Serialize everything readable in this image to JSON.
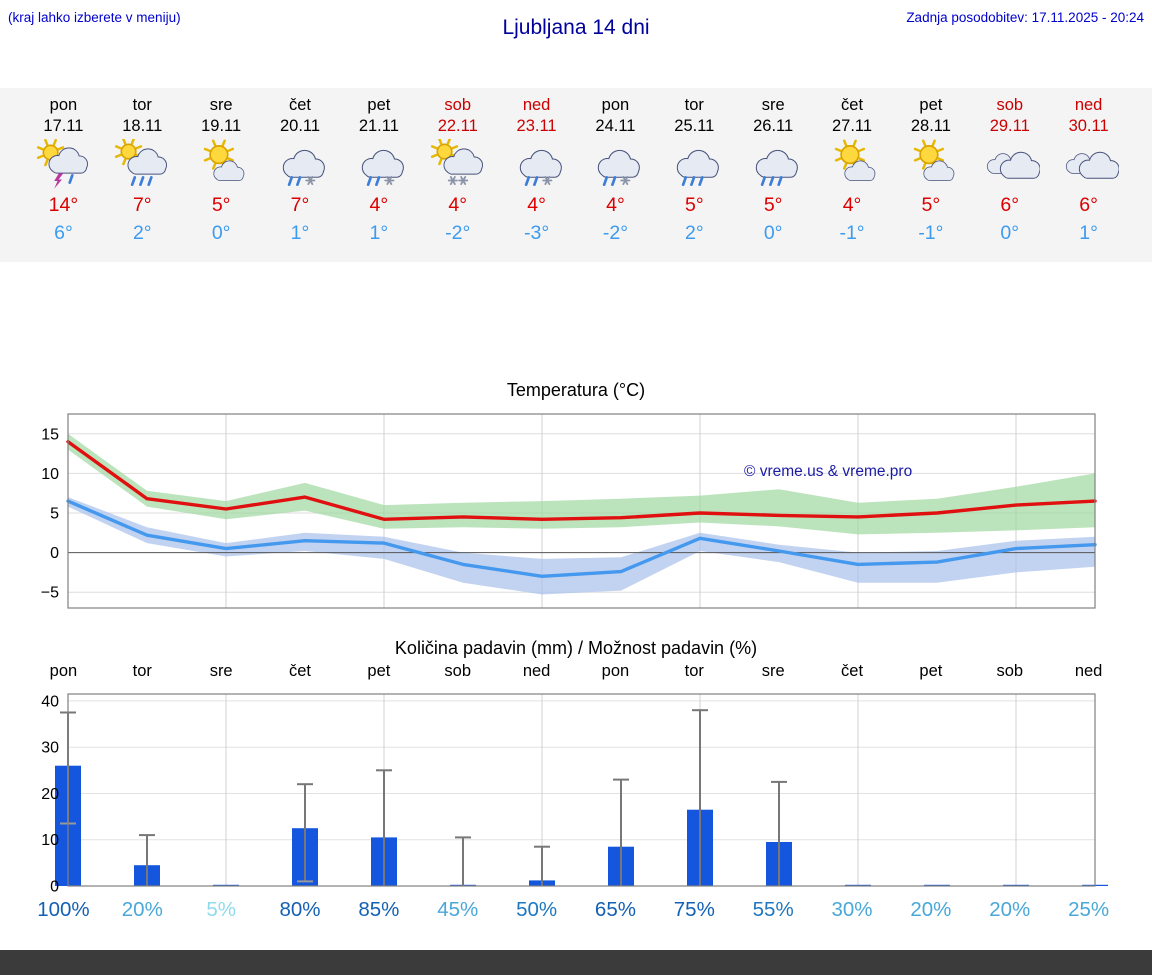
{
  "header": {
    "note": "(kraj lahko izberete v meniju)",
    "title": "Ljubljana 14 dni",
    "updated": "Zadnja posodobitev: 17.11.2025 - 20:24"
  },
  "colors": {
    "weekday": "#000000",
    "weekend": "#cc0000",
    "tmax": "#dd0000",
    "tmin": "#3b9bf0",
    "bar": "#1456dd",
    "temp_max_line": "#e01010",
    "temp_min_line": "#4499ee",
    "temp_max_band": "#9fd89f",
    "temp_min_band": "#a8c0ec",
    "watermark": "#1a1aa6",
    "footer_bar": "#3b3b3b"
  },
  "days": [
    {
      "name": "pon",
      "date": "17.11",
      "weekend": false,
      "icon": "thunderstorm-sun",
      "tmax": "14°",
      "tmin": "6°"
    },
    {
      "name": "tor",
      "date": "18.11",
      "weekend": false,
      "icon": "rain-sun",
      "tmax": "7°",
      "tmin": "2°"
    },
    {
      "name": "sre",
      "date": "19.11",
      "weekend": false,
      "icon": "partly-sunny",
      "tmax": "5°",
      "tmin": "0°"
    },
    {
      "name": "čet",
      "date": "20.11",
      "weekend": false,
      "icon": "sleet",
      "tmax": "7°",
      "tmin": "1°"
    },
    {
      "name": "pet",
      "date": "21.11",
      "weekend": false,
      "icon": "sleet",
      "tmax": "4°",
      "tmin": "1°"
    },
    {
      "name": "sob",
      "date": "22.11",
      "weekend": true,
      "icon": "snow-sun",
      "tmax": "4°",
      "tmin": "-2°"
    },
    {
      "name": "ned",
      "date": "23.11",
      "weekend": true,
      "icon": "sleet",
      "tmax": "4°",
      "tmin": "-3°"
    },
    {
      "name": "pon",
      "date": "24.11",
      "weekend": false,
      "icon": "sleet",
      "tmax": "4°",
      "tmin": "-2°"
    },
    {
      "name": "tor",
      "date": "25.11",
      "weekend": false,
      "icon": "rain",
      "tmax": "5°",
      "tmin": "2°"
    },
    {
      "name": "sre",
      "date": "26.11",
      "weekend": false,
      "icon": "rain",
      "tmax": "5°",
      "tmin": "0°"
    },
    {
      "name": "čet",
      "date": "27.11",
      "weekend": false,
      "icon": "partly-sunny",
      "tmax": "4°",
      "tmin": "-1°"
    },
    {
      "name": "pet",
      "date": "28.11",
      "weekend": false,
      "icon": "partly-sunny",
      "tmax": "5°",
      "tmin": "-1°"
    },
    {
      "name": "sob",
      "date": "29.11",
      "weekend": true,
      "icon": "cloudy",
      "tmax": "6°",
      "tmin": "0°"
    },
    {
      "name": "ned",
      "date": "30.11",
      "weekend": true,
      "icon": "cloudy",
      "tmax": "6°",
      "tmin": "1°"
    }
  ],
  "chart_data": {
    "temperature": {
      "type": "line",
      "title": "Temperatura (°C)",
      "categories": [
        "pon",
        "tor",
        "sre",
        "čet",
        "pet",
        "sob",
        "ned",
        "pon",
        "tor",
        "sre",
        "čet",
        "pet",
        "sob",
        "ned"
      ],
      "ylim": [
        -7,
        17.5
      ],
      "yticks": [
        [
          15,
          "15"
        ],
        [
          10,
          "10"
        ],
        [
          5,
          "5"
        ],
        [
          0,
          "0"
        ],
        [
          -5,
          "−5"
        ]
      ],
      "grid": true,
      "watermark": "© vreme.us & vreme.pro",
      "series": [
        {
          "name": "max",
          "values": [
            14,
            6.8,
            5.5,
            7,
            4.2,
            4.5,
            4.2,
            4.4,
            5,
            4.7,
            4.5,
            5,
            6,
            6.5
          ]
        },
        {
          "name": "min",
          "values": [
            6.5,
            2.2,
            0.5,
            1.5,
            1.2,
            -1.5,
            -3,
            -2.4,
            1.8,
            0.2,
            -1.5,
            -1.2,
            0.5,
            1
          ]
        },
        {
          "name": "max_band_upper",
          "values": [
            15,
            7.8,
            6.5,
            8.8,
            6,
            6.3,
            6.5,
            6.8,
            7.2,
            8,
            6.3,
            6.8,
            8.3,
            10
          ]
        },
        {
          "name": "max_band_lower",
          "values": [
            13,
            5.8,
            4.2,
            5.3,
            3,
            3.2,
            3,
            3.2,
            3.8,
            3.3,
            2.3,
            2.5,
            2.8,
            3.2
          ]
        },
        {
          "name": "min_band_upper",
          "values": [
            7,
            3.2,
            1.2,
            2.5,
            2,
            0,
            -0.8,
            -0.6,
            2.5,
            1,
            0,
            0.2,
            1.5,
            2
          ]
        },
        {
          "name": "min_band_lower",
          "values": [
            5.8,
            1.2,
            -0.5,
            0.2,
            -0.8,
            -3.8,
            -5.3,
            -4.8,
            0.2,
            -1.2,
            -3.8,
            -3.8,
            -2.5,
            -1.8
          ]
        }
      ]
    },
    "precipitation": {
      "type": "bar",
      "title": "Količina padavin (mm) / Možnost padavin (%)",
      "categories": [
        "pon",
        "tor",
        "sre",
        "čet",
        "pet",
        "sob",
        "ned",
        "pon",
        "tor",
        "sre",
        "čet",
        "pet",
        "sob",
        "ned"
      ],
      "ylim": [
        0,
        41.5
      ],
      "yticks": [
        [
          0,
          "0"
        ],
        [
          10,
          "10"
        ],
        [
          20,
          "20"
        ],
        [
          30,
          "30"
        ],
        [
          40,
          "40"
        ]
      ],
      "grid": true,
      "values": [
        26,
        4.5,
        0.1,
        12.5,
        10.5,
        0.1,
        1.2,
        8.5,
        16.5,
        9.5,
        0.1,
        0.1,
        0.1,
        0.1
      ],
      "whiskers": [
        [
          13.5,
          37.5
        ],
        [
          0,
          11
        ],
        null,
        [
          1,
          22
        ],
        [
          0,
          25
        ],
        [
          0,
          10.5
        ],
        [
          0,
          8.5
        ],
        [
          0,
          23
        ],
        [
          0,
          38
        ],
        [
          0,
          22.5
        ],
        null,
        null,
        null,
        null
      ],
      "probabilities": [
        {
          "label": "100%",
          "color": "#1360b4"
        },
        {
          "label": "20%",
          "color": "#49a8d8"
        },
        {
          "label": "5%",
          "color": "#8fdbec"
        },
        {
          "label": "80%",
          "color": "#1360b4"
        },
        {
          "label": "85%",
          "color": "#1360b4"
        },
        {
          "label": "45%",
          "color": "#49a8d8"
        },
        {
          "label": "50%",
          "color": "#1e77c0"
        },
        {
          "label": "65%",
          "color": "#1360b4"
        },
        {
          "label": "75%",
          "color": "#1360b4"
        },
        {
          "label": "55%",
          "color": "#1e77c0"
        },
        {
          "label": "30%",
          "color": "#49a8d8"
        },
        {
          "label": "20%",
          "color": "#49a8d8"
        },
        {
          "label": "20%",
          "color": "#49a8d8"
        },
        {
          "label": "25%",
          "color": "#49a8d8"
        }
      ]
    }
  }
}
